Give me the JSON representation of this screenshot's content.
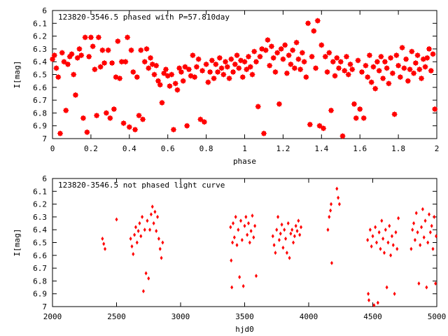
{
  "chart_data": [
    {
      "type": "scatter",
      "title": "123820-3546.5 phased with P=57.810day",
      "xlabel": "phase",
      "ylabel": "I[mag]",
      "xlim": [
        0,
        2
      ],
      "ylim": [
        7,
        6
      ],
      "y_inverted": true,
      "grid": false,
      "marker_color": "#ff0000",
      "xticks": [
        "0",
        "0.2",
        "0.4",
        "0.6",
        "0.8",
        "1",
        "1.2",
        "1.4",
        "1.6",
        "1.8",
        "2"
      ],
      "yticks": [
        "6",
        "6.1",
        "6.2",
        "6.3",
        "6.4",
        "6.5",
        "6.6",
        "6.7",
        "6.8",
        "6.9",
        "7"
      ],
      "points": [
        [
          0.0,
          6.38
        ],
        [
          0.01,
          6.35
        ],
        [
          0.02,
          6.45
        ],
        [
          0.03,
          6.52
        ],
        [
          0.04,
          6.96
        ],
        [
          0.05,
          6.33
        ],
        [
          0.06,
          6.4
        ],
        [
          0.07,
          6.78
        ],
        [
          0.08,
          6.42
        ],
        [
          0.09,
          6.36
        ],
        [
          0.1,
          6.34
        ],
        [
          0.11,
          6.5
        ],
        [
          0.12,
          6.66
        ],
        [
          0.13,
          6.37
        ],
        [
          0.14,
          6.3
        ],
        [
          0.15,
          6.35
        ],
        [
          0.16,
          6.84
        ],
        [
          0.17,
          6.21
        ],
        [
          0.18,
          6.95
        ],
        [
          0.19,
          6.36
        ],
        [
          0.2,
          6.21
        ],
        [
          0.21,
          6.28
        ],
        [
          0.22,
          6.46
        ],
        [
          0.23,
          6.82
        ],
        [
          0.24,
          6.21
        ],
        [
          0.25,
          6.44
        ],
        [
          0.26,
          6.31
        ],
        [
          0.27,
          6.41
        ],
        [
          0.28,
          6.8
        ],
        [
          0.29,
          6.31
        ],
        [
          0.3,
          6.84
        ],
        [
          0.31,
          6.41
        ],
        [
          0.32,
          6.77
        ],
        [
          0.33,
          6.52
        ],
        [
          0.34,
          6.24
        ],
        [
          0.35,
          6.53
        ],
        [
          0.36,
          6.4
        ],
        [
          0.37,
          6.88
        ],
        [
          0.38,
          6.4
        ],
        [
          0.39,
          6.21
        ],
        [
          0.4,
          6.91
        ],
        [
          0.41,
          6.31
        ],
        [
          0.42,
          6.48
        ],
        [
          0.43,
          6.93
        ],
        [
          0.44,
          6.52
        ],
        [
          0.45,
          6.82
        ],
        [
          0.46,
          6.31
        ],
        [
          0.47,
          6.85
        ],
        [
          0.48,
          6.4
        ],
        [
          0.49,
          6.3
        ],
        [
          0.5,
          6.45
        ],
        [
          0.51,
          6.37
        ],
        [
          0.52,
          6.42
        ],
        [
          0.53,
          6.5
        ],
        [
          0.54,
          6.43
        ],
        [
          0.55,
          6.55
        ],
        [
          0.56,
          6.58
        ],
        [
          0.57,
          6.72
        ],
        [
          0.58,
          6.49
        ],
        [
          0.59,
          6.46
        ],
        [
          0.6,
          6.51
        ],
        [
          0.61,
          6.59
        ],
        [
          0.62,
          6.5
        ],
        [
          0.63,
          6.93
        ],
        [
          0.64,
          6.57
        ],
        [
          0.65,
          6.62
        ],
        [
          0.66,
          6.45
        ],
        [
          0.67,
          6.48
        ],
        [
          0.68,
          6.55
        ],
        [
          0.69,
          6.44
        ],
        [
          0.7,
          6.9
        ],
        [
          0.71,
          6.46
        ],
        [
          0.72,
          6.51
        ],
        [
          0.73,
          6.35
        ],
        [
          0.74,
          6.52
        ],
        [
          0.75,
          6.44
        ],
        [
          0.76,
          6.38
        ],
        [
          0.77,
          6.85
        ],
        [
          0.78,
          6.47
        ],
        [
          0.79,
          6.87
        ],
        [
          0.8,
          6.42
        ],
        [
          0.81,
          6.56
        ],
        [
          0.82,
          6.48
        ],
        [
          0.83,
          6.39
        ],
        [
          0.84,
          6.53
        ],
        [
          0.85,
          6.42
        ],
        [
          0.86,
          6.48
        ],
        [
          0.87,
          6.37
        ],
        [
          0.88,
          6.45
        ],
        [
          0.89,
          6.5
        ],
        [
          0.9,
          6.4
        ],
        [
          0.91,
          6.44
        ],
        [
          0.92,
          6.53
        ],
        [
          0.93,
          6.38
        ],
        [
          0.94,
          6.48
        ],
        [
          0.95,
          6.42
        ],
        [
          0.96,
          6.35
        ],
        [
          0.97,
          6.45
        ],
        [
          0.98,
          6.39
        ],
        [
          0.99,
          6.52
        ],
        [
          1.0,
          6.4
        ],
        [
          1.01,
          6.46
        ],
        [
          1.02,
          6.36
        ],
        [
          1.03,
          6.44
        ],
        [
          1.04,
          6.5
        ],
        [
          1.05,
          6.32
        ],
        [
          1.06,
          6.4
        ],
        [
          1.07,
          6.75
        ],
        [
          1.08,
          6.36
        ],
        [
          1.09,
          6.3
        ],
        [
          1.1,
          6.96
        ],
        [
          1.11,
          6.31
        ],
        [
          1.12,
          6.23
        ],
        [
          1.13,
          6.43
        ],
        [
          1.14,
          6.28
        ],
        [
          1.15,
          6.37
        ],
        [
          1.16,
          6.48
        ],
        [
          1.17,
          6.33
        ],
        [
          1.18,
          6.73
        ],
        [
          1.19,
          6.3
        ],
        [
          1.2,
          6.38
        ],
        [
          1.21,
          6.27
        ],
        [
          1.22,
          6.49
        ],
        [
          1.23,
          6.35
        ],
        [
          1.24,
          6.42
        ],
        [
          1.25,
          6.31
        ],
        [
          1.26,
          6.45
        ],
        [
          1.27,
          6.25
        ],
        [
          1.28,
          6.38
        ],
        [
          1.29,
          6.46
        ],
        [
          1.3,
          6.33
        ],
        [
          1.31,
          6.4
        ],
        [
          1.32,
          6.52
        ],
        [
          1.33,
          6.1
        ],
        [
          1.34,
          6.89
        ],
        [
          1.35,
          6.36
        ],
        [
          1.36,
          6.16
        ],
        [
          1.37,
          6.45
        ],
        [
          1.38,
          6.08
        ],
        [
          1.39,
          6.9
        ],
        [
          1.4,
          6.27
        ],
        [
          1.41,
          6.92
        ],
        [
          1.42,
          6.36
        ],
        [
          1.43,
          6.48
        ],
        [
          1.44,
          6.33
        ],
        [
          1.45,
          6.78
        ],
        [
          1.46,
          6.4
        ],
        [
          1.47,
          6.51
        ],
        [
          1.48,
          6.37
        ],
        [
          1.49,
          6.45
        ],
        [
          1.5,
          6.4
        ],
        [
          1.51,
          6.98
        ],
        [
          1.52,
          6.47
        ],
        [
          1.53,
          6.36
        ],
        [
          1.54,
          6.5
        ],
        [
          1.55,
          6.42
        ],
        [
          1.56,
          6.46
        ],
        [
          1.57,
          6.73
        ],
        [
          1.58,
          6.84
        ],
        [
          1.59,
          6.39
        ],
        [
          1.6,
          6.77
        ],
        [
          1.61,
          6.48
        ],
        [
          1.62,
          6.84
        ],
        [
          1.63,
          6.43
        ],
        [
          1.64,
          6.52
        ],
        [
          1.65,
          6.35
        ],
        [
          1.66,
          6.56
        ],
        [
          1.67,
          6.44
        ],
        [
          1.68,
          6.61
        ],
        [
          1.69,
          6.4
        ],
        [
          1.7,
          6.47
        ],
        [
          1.71,
          6.36
        ],
        [
          1.72,
          6.53
        ],
        [
          1.73,
          6.4
        ],
        [
          1.74,
          6.45
        ],
        [
          1.75,
          6.57
        ],
        [
          1.76,
          6.37
        ],
        [
          1.77,
          6.49
        ],
        [
          1.78,
          6.81
        ],
        [
          1.79,
          6.35
        ],
        [
          1.8,
          6.43
        ],
        [
          1.81,
          6.52
        ],
        [
          1.82,
          6.29
        ],
        [
          1.83,
          6.45
        ],
        [
          1.84,
          6.38
        ],
        [
          1.85,
          6.55
        ],
        [
          1.86,
          6.46
        ],
        [
          1.87,
          6.32
        ],
        [
          1.88,
          6.49
        ],
        [
          1.89,
          6.41
        ],
        [
          1.9,
          6.35
        ],
        [
          1.91,
          6.46
        ],
        [
          1.92,
          6.53
        ],
        [
          1.93,
          6.38
        ],
        [
          1.94,
          6.44
        ],
        [
          1.95,
          6.37
        ],
        [
          1.96,
          6.3
        ],
        [
          1.97,
          6.47
        ],
        [
          1.98,
          6.34
        ],
        [
          1.99,
          6.77
        ]
      ]
    },
    {
      "type": "scatter",
      "title": "123820-3546.5 not phased light curve",
      "xlabel": "hjd0",
      "ylabel": "I[mag]",
      "xlim": [
        2000,
        5000
      ],
      "ylim": [
        7,
        6
      ],
      "y_inverted": true,
      "grid": false,
      "marker_color": "#ff0000",
      "xticks": [
        "2000",
        "2500",
        "3000",
        "3500",
        "4000",
        "4500",
        "5000"
      ],
      "yticks": [
        "6",
        "6.1",
        "6.2",
        "6.3",
        "6.4",
        "6.5",
        "6.6",
        "6.7",
        "6.8",
        "6.9",
        "7"
      ],
      "points": [
        [
          2390,
          6.47
        ],
        [
          2400,
          6.51
        ],
        [
          2410,
          6.55
        ],
        [
          2500,
          6.32
        ],
        [
          2610,
          6.47
        ],
        [
          2620,
          6.53
        ],
        [
          2630,
          6.59
        ],
        [
          2640,
          6.44
        ],
        [
          2650,
          6.38
        ],
        [
          2660,
          6.5
        ],
        [
          2670,
          6.41
        ],
        [
          2680,
          6.35
        ],
        [
          2690,
          6.45
        ],
        [
          2700,
          6.3
        ],
        [
          2710,
          6.88
        ],
        [
          2720,
          6.4
        ],
        [
          2730,
          6.74
        ],
        [
          2740,
          6.33
        ],
        [
          2750,
          6.78
        ],
        [
          2760,
          6.4
        ],
        [
          2770,
          6.28
        ],
        [
          2780,
          6.22
        ],
        [
          2790,
          6.35
        ],
        [
          2800,
          6.26
        ],
        [
          2810,
          6.41
        ],
        [
          2820,
          6.3
        ],
        [
          2830,
          6.47
        ],
        [
          2840,
          6.55
        ],
        [
          2850,
          6.62
        ],
        [
          2860,
          6.5
        ],
        [
          3390,
          6.38
        ],
        [
          3395,
          6.64
        ],
        [
          3400,
          6.85
        ],
        [
          3405,
          6.5
        ],
        [
          3410,
          6.35
        ],
        [
          3420,
          6.46
        ],
        [
          3430,
          6.3
        ],
        [
          3440,
          6.52
        ],
        [
          3450,
          6.4
        ],
        [
          3460,
          6.77
        ],
        [
          3470,
          6.33
        ],
        [
          3480,
          6.48
        ],
        [
          3490,
          6.84
        ],
        [
          3500,
          6.37
        ],
        [
          3510,
          6.3
        ],
        [
          3520,
          6.44
        ],
        [
          3530,
          6.35
        ],
        [
          3540,
          6.5
        ],
        [
          3550,
          6.41
        ],
        [
          3560,
          6.29
        ],
        [
          3570,
          6.46
        ],
        [
          3580,
          6.37
        ],
        [
          3590,
          6.76
        ],
        [
          3720,
          6.45
        ],
        [
          3730,
          6.52
        ],
        [
          3740,
          6.58
        ],
        [
          3750,
          6.4
        ],
        [
          3760,
          6.3
        ],
        [
          3770,
          6.48
        ],
        [
          3780,
          6.43
        ],
        [
          3790,
          6.36
        ],
        [
          3800,
          6.54
        ],
        [
          3810,
          6.4
        ],
        [
          3820,
          6.47
        ],
        [
          3830,
          6.58
        ],
        [
          3840,
          6.35
        ],
        [
          3850,
          6.62
        ],
        [
          3860,
          6.43
        ],
        [
          3870,
          6.4
        ],
        [
          3880,
          6.5
        ],
        [
          3890,
          6.45
        ],
        [
          3900,
          6.37
        ],
        [
          3910,
          6.41
        ],
        [
          3920,
          6.33
        ],
        [
          3930,
          6.44
        ],
        [
          3940,
          6.38
        ],
        [
          4150,
          6.4
        ],
        [
          4160,
          6.3
        ],
        [
          4170,
          6.25
        ],
        [
          4175,
          6.2
        ],
        [
          4180,
          6.66
        ],
        [
          4220,
          6.08
        ],
        [
          4230,
          6.15
        ],
        [
          4240,
          6.2
        ],
        [
          4460,
          6.48
        ],
        [
          4465,
          6.9
        ],
        [
          4470,
          6.95
        ],
        [
          4480,
          6.4
        ],
        [
          4490,
          6.53
        ],
        [
          4500,
          6.45
        ],
        [
          4510,
          6.99
        ],
        [
          4520,
          6.38
        ],
        [
          4530,
          6.5
        ],
        [
          4540,
          6.97
        ],
        [
          4550,
          6.42
        ],
        [
          4560,
          6.55
        ],
        [
          4570,
          6.33
        ],
        [
          4580,
          6.47
        ],
        [
          4590,
          6.58
        ],
        [
          4600,
          6.4
        ],
        [
          4610,
          6.85
        ],
        [
          4620,
          6.5
        ],
        [
          4630,
          6.37
        ],
        [
          4640,
          6.6
        ],
        [
          4650,
          6.45
        ],
        [
          4660,
          6.52
        ],
        [
          4670,
          6.9
        ],
        [
          4680,
          6.42
        ],
        [
          4690,
          6.55
        ],
        [
          4700,
          6.31
        ],
        [
          4800,
          6.55
        ],
        [
          4810,
          6.4
        ],
        [
          4820,
          6.35
        ],
        [
          4830,
          6.48
        ],
        [
          4840,
          6.27
        ],
        [
          4850,
          6.42
        ],
        [
          4860,
          6.82
        ],
        [
          4870,
          6.52
        ],
        [
          4880,
          6.38
        ],
        [
          4890,
          6.24
        ],
        [
          4900,
          6.46
        ],
        [
          4910,
          6.33
        ],
        [
          4920,
          6.85
        ],
        [
          4930,
          6.5
        ],
        [
          4940,
          6.28
        ],
        [
          4950,
          6.42
        ],
        [
          4960,
          6.37
        ],
        [
          4970,
          6.55
        ],
        [
          4980,
          6.3
        ],
        [
          4990,
          6.82
        ],
        [
          4995,
          6.45
        ]
      ]
    }
  ]
}
